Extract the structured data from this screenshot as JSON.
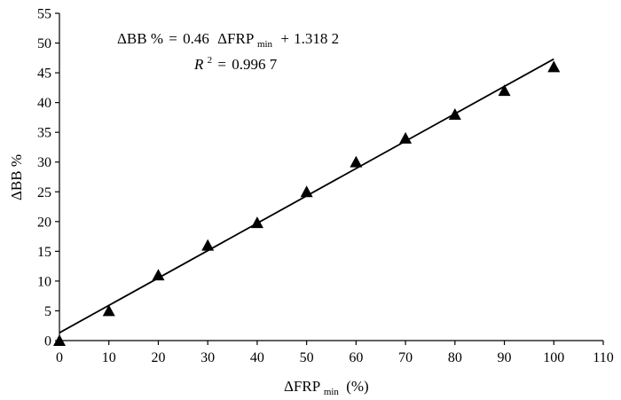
{
  "chart_data": {
    "type": "scatter",
    "xlabel": "ΔFRP",
    "xlabel_sub": "min",
    "xlabel_unit": "(%)",
    "ylabel": "ΔBB %",
    "xlim": [
      0,
      110
    ],
    "ylim": [
      0,
      55
    ],
    "xticks": [
      0,
      10,
      20,
      30,
      40,
      50,
      60,
      70,
      80,
      90,
      100,
      110
    ],
    "yticks": [
      0,
      5,
      10,
      15,
      20,
      25,
      30,
      35,
      40,
      45,
      50,
      55
    ],
    "x": [
      0,
      10,
      20,
      30,
      40,
      50,
      60,
      70,
      80,
      90,
      100
    ],
    "y": [
      0,
      5,
      11,
      16,
      19.8,
      25,
      30,
      34,
      38,
      42,
      46
    ],
    "marker": "triangle",
    "grid": false,
    "fit": {
      "slope": 0.46,
      "intercept": 1.3182,
      "x_range": [
        0,
        100
      ]
    },
    "equation": {
      "lhs": "ΔBB %",
      "eq": "=",
      "coef": "0.46",
      "var": "ΔFRP",
      "var_sub": "min",
      "plus": "+",
      "const": "1.318 2"
    },
    "r2": {
      "label": "R",
      "sup": "2",
      "eq": "=",
      "value": "0.996 7"
    }
  }
}
